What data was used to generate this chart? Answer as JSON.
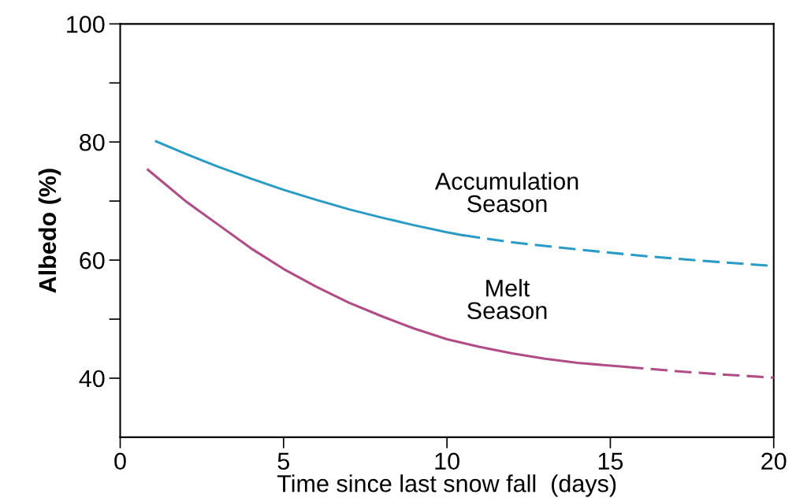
{
  "chart_data": {
    "type": "line",
    "xlabel": "Time since last snow fall  (days)",
    "ylabel": "Albedo (%)",
    "xlim": [
      0,
      20
    ],
    "xticks": [
      0,
      5,
      10,
      15,
      20
    ],
    "ylim": [
      30,
      100
    ],
    "yticks": [
      {
        "value": 40,
        "label": "40"
      },
      {
        "value": 50,
        "label": null
      },
      {
        "value": 60,
        "label": "60"
      },
      {
        "value": 70,
        "label": null
      },
      {
        "value": 80,
        "label": "80"
      },
      {
        "value": 90,
        "label": null
      },
      {
        "value": 100,
        "label": "100"
      }
    ],
    "grid": false,
    "legend": false,
    "marker": "none",
    "series": [
      {
        "name": "Accumulation\nSeason",
        "color": "#2a9bc4",
        "line_style": "solid",
        "x": [
          1.1,
          2,
          3,
          4,
          5,
          6,
          7,
          8,
          9,
          10,
          10.5
        ],
        "values": [
          80.1,
          78,
          75.8,
          73.8,
          71.9,
          70.2,
          68.6,
          67.2,
          65.9,
          64.7,
          64.2
        ]
      },
      {
        "color": "#2a9bc4",
        "line_style": "dashed",
        "x": [
          10.5,
          12,
          14,
          16,
          18,
          20
        ],
        "values": [
          64.2,
          63,
          61.8,
          60.7,
          59.8,
          59.0
        ]
      },
      {
        "name": "Melt\nSeason",
        "color": "#b04c86",
        "line_style": "solid",
        "x": [
          0.85,
          2,
          3,
          4,
          5,
          6,
          7,
          8,
          9,
          10,
          11,
          12,
          13,
          14,
          15.5
        ],
        "values": [
          75.3,
          70,
          66,
          62,
          58.5,
          55.5,
          52.8,
          50.5,
          48.4,
          46.6,
          45.3,
          44.2,
          43.3,
          42.6,
          41.9
        ]
      },
      {
        "color": "#b04c86",
        "line_style": "dashed",
        "x": [
          15.5,
          17,
          18.5,
          20
        ],
        "values": [
          41.9,
          41.2,
          40.6,
          40.1
        ]
      }
    ]
  }
}
